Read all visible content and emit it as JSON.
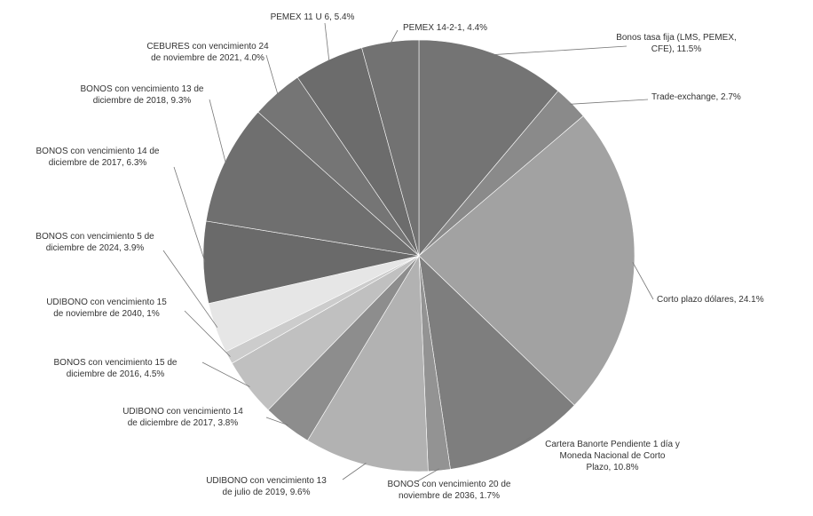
{
  "chart_data": {
    "type": "pie",
    "start_angle_deg": -90,
    "direction": "clockwise",
    "slices": [
      {
        "label": "Bonos tasa fija (LMS, PEMEX, CFE)",
        "pct_text": "11.5%",
        "value": 11.5,
        "color": "#747474"
      },
      {
        "label": "Trade-exchange",
        "pct_text": "2.7%",
        "value": 2.7,
        "color": "#8a8a8a"
      },
      {
        "label": "Corto plazo dólares",
        "pct_text": "24.1%",
        "value": 24.1,
        "color": "#a2a2a2"
      },
      {
        "label": "Cartera Banorte Pendiente 1 día y Moneda Nacional de Corto Plazo",
        "pct_text": "10.8%",
        "value": 10.8,
        "color": "#7e7e7e"
      },
      {
        "label": "BONOS con vencimiento 20 de noviembre de 2036",
        "pct_text": "1.7%",
        "value": 1.7,
        "color": "#939393"
      },
      {
        "label": "UDIBONO con vencimiento 13 de julio de 2019",
        "pct_text": "9.6%",
        "value": 9.6,
        "color": "#b2b2b2"
      },
      {
        "label": "UDIBONO con vencimiento 14 de diciembre de 2017",
        "pct_text": "3.8%",
        "value": 3.8,
        "color": "#8d8d8d"
      },
      {
        "label": "BONOS con vencimiento 15 de diciembre de 2016",
        "pct_text": "4.5%",
        "value": 4.5,
        "color": "#c0c0c0"
      },
      {
        "label": "UDIBONO con vencimiento 15 de noviembre de 2040",
        "pct_text": "1%",
        "value": 1.0,
        "color": "#cccccc"
      },
      {
        "label": "BONOS con vencimiento 5 de diciembre de 2024",
        "pct_text": "3.9%",
        "value": 3.9,
        "color": "#e6e6e6"
      },
      {
        "label": "BONOS con vencimiento 14 de diciembre de 2017",
        "pct_text": "6.3%",
        "value": 6.3,
        "color": "#6a6a6a"
      },
      {
        "label": "BONOS con vencimiento 13 de diciembre de 2018",
        "pct_text": "9.3%",
        "value": 9.3,
        "color": "#6f6f6f"
      },
      {
        "label": "CEBURES con vencimiento 24 de noviembre de 2021",
        "pct_text": "4.0%",
        "value": 4.0,
        "color": "#757575"
      },
      {
        "label": "PEMEX 11 U 6",
        "pct_text": "5.4%",
        "value": 5.4,
        "color": "#6c6c6c"
      },
      {
        "label": "PEMEX 14-2-1",
        "pct_text": "4.4%",
        "value": 4.4,
        "color": "#727272"
      }
    ]
  }
}
